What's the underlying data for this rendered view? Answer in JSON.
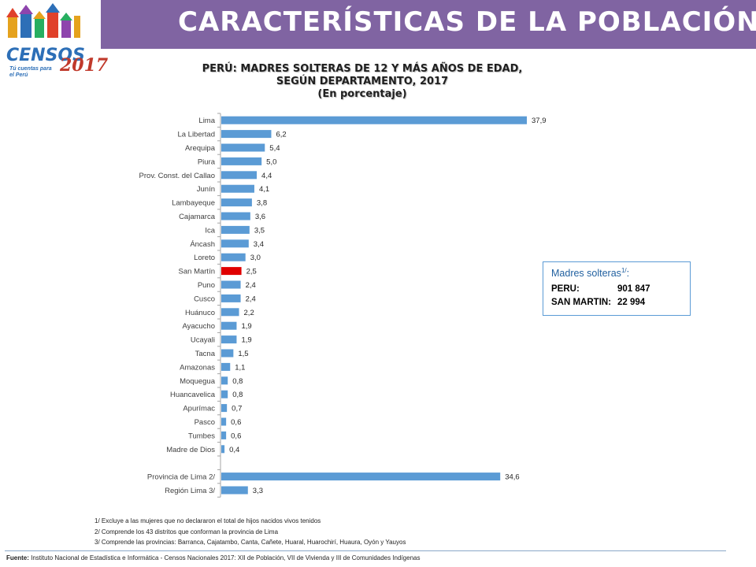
{
  "header": {
    "title": "CARACTERÍSTICAS DE LA POBLACIÓN",
    "logo_text": "CENSOS",
    "logo_year": "2017",
    "logo_tagline": "Tú cuentas para el Perú"
  },
  "chart_data": {
    "type": "bar",
    "orientation": "horizontal",
    "title": "PERÚ: MADRES SOLTERAS DE 12 Y MÁS AÑOS DE EDAD,",
    "title_line2": "SEGÚN DEPARTAMENTO, 2017",
    "subtitle": "(En porcentaje)",
    "xlim": [
      0,
      40
    ],
    "grid": false,
    "categories": [
      "Lima",
      "La Libertad",
      "Arequipa",
      "Piura",
      "Prov. Const. del Callao",
      "Junín",
      "Lambayeque",
      "Cajamarca",
      "Ica",
      "Áncash",
      "Loreto",
      "San Martín",
      "Puno",
      "Cusco",
      "Huánuco",
      "Ayacucho",
      "Ucayali",
      "Tacna",
      "Amazonas",
      "Moquegua",
      "Huancavelica",
      "Apurímac",
      "Pasco",
      "Tumbes",
      "Madre de Dios",
      "",
      "Provincia de Lima 2/",
      "Región Lima 3/"
    ],
    "values": [
      37.9,
      6.2,
      5.4,
      5.0,
      4.4,
      4.1,
      3.8,
      3.6,
      3.5,
      3.4,
      3.0,
      2.5,
      2.4,
      2.4,
      2.2,
      1.9,
      1.9,
      1.5,
      1.1,
      0.8,
      0.8,
      0.7,
      0.6,
      0.6,
      0.4,
      null,
      34.6,
      3.3
    ],
    "labels": [
      "37,9",
      "6,2",
      "5,4",
      "5,0",
      "4,4",
      "4,1",
      "3,8",
      "3,6",
      "3,5",
      "3,4",
      "3,0",
      "2,5",
      "2,4",
      "2,4",
      "2,2",
      "1,9",
      "1,9",
      "1,5",
      "1,1",
      "0,8",
      "0,8",
      "0,7",
      "0,6",
      "0,6",
      "0,4",
      "",
      "34,6",
      "3,3"
    ],
    "highlight_category": "San Martín",
    "colors": {
      "bar": "#5b9bd5",
      "highlight": "#e00000",
      "axis": "#a6a6a6"
    }
  },
  "infobox": {
    "title": "Madres solteras",
    "title_sup": "1/",
    "title_suffix": ":",
    "rows": [
      {
        "label": "PERU:",
        "value": "901 847"
      },
      {
        "label": "SAN MARTIN:",
        "value": "22 994"
      }
    ]
  },
  "notes": [
    "1/ Excluye a las mujeres que no declararon el total de hijos nacidos vivos tenidos",
    "2/ Comprende los 43 distritos que conforman la provincia de Lima",
    "3/ Comprende las provincias: Barranca, Cajatambo, Canta, Cañete, Huaral, Huarochirí, Huaura, Oyón y Yauyos"
  ],
  "footer": {
    "label": "Fuente:",
    "text": " Instituto Nacional de Estadística e Informática - Censos Nacionales 2017: XII de Población, VII de Vivienda y III de Comunidades Indígenas"
  }
}
